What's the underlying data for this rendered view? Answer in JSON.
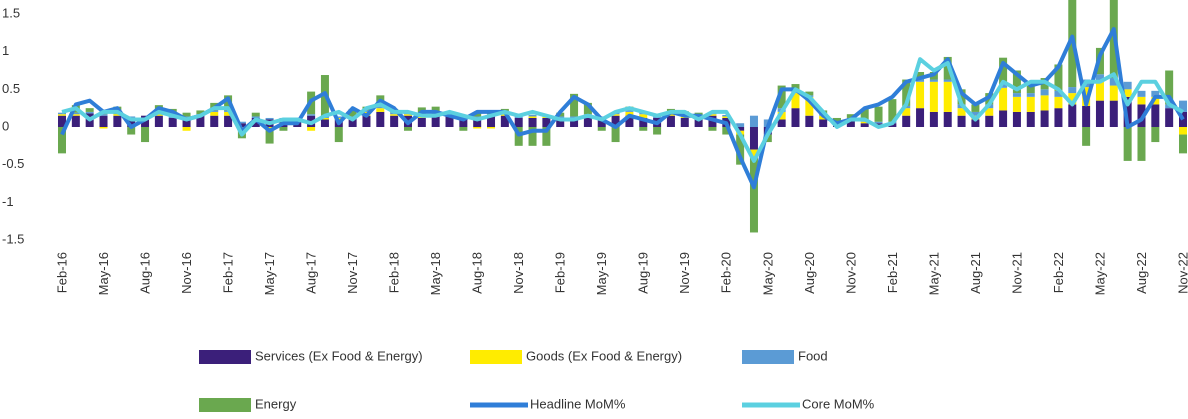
{
  "chart_data": {
    "type": "bar_line",
    "categories": [
      "Feb-16",
      null,
      null,
      "May-16",
      null,
      null,
      "Aug-16",
      null,
      null,
      "Nov-16",
      null,
      null,
      "Feb-17",
      null,
      null,
      "May-17",
      null,
      null,
      "Aug-17",
      null,
      null,
      "Nov-17",
      null,
      null,
      "Feb-18",
      null,
      null,
      "May-18",
      null,
      null,
      "Aug-18",
      null,
      null,
      "Nov-18",
      null,
      null,
      "Feb-19",
      null,
      null,
      "May-19",
      null,
      null,
      "Aug-19",
      null,
      null,
      "Nov-19",
      null,
      null,
      "Feb-20",
      null,
      null,
      "May-20",
      null,
      null,
      "Aug-20",
      null,
      null,
      "Nov-20",
      null,
      null,
      "Feb-21",
      null,
      null,
      "May-21",
      null,
      null,
      "Aug-21",
      null,
      null,
      "Nov-21",
      null,
      null,
      "Feb-22",
      null,
      null,
      "May-22",
      null,
      null,
      "Aug-22",
      null,
      null,
      "Nov-22"
    ],
    "series": [
      {
        "name": "Services (Ex Food & Energy)",
        "kind": "bar",
        "color": "#3b1f7a",
        "values": [
          0.15,
          0.15,
          0.18,
          0.15,
          0.15,
          0.12,
          0.15,
          0.15,
          0.12,
          0.12,
          0.15,
          0.15,
          0.15,
          0.05,
          0.12,
          0.1,
          0.1,
          0.1,
          0.15,
          0.1,
          0.1,
          0.12,
          0.15,
          0.2,
          0.15,
          0.15,
          0.12,
          0.15,
          0.15,
          0.12,
          0.12,
          0.15,
          0.15,
          0.12,
          0.12,
          0.12,
          0.12,
          0.12,
          0.15,
          0.12,
          0.15,
          0.15,
          0.12,
          0.12,
          0.15,
          0.12,
          0.12,
          0.15,
          0.12,
          -0.05,
          -0.3,
          -0.1,
          0.1,
          0.25,
          0.15,
          0.1,
          0.05,
          0.1,
          0.05,
          0.05,
          0.05,
          0.15,
          0.25,
          0.2,
          0.2,
          0.15,
          0.1,
          0.15,
          0.22,
          0.2,
          0.2,
          0.22,
          0.25,
          0.3,
          0.28,
          0.35,
          0.35,
          0.4,
          0.3,
          0.3,
          0.25,
          0.2
        ]
      },
      {
        "name": "Goods (Ex Food & Energy)",
        "kind": "bar",
        "color": "#ffec00",
        "values": [
          0.02,
          0.02,
          0,
          -0.02,
          0.02,
          0,
          0,
          0.02,
          0,
          -0.05,
          0,
          0.05,
          0.05,
          -0.05,
          0,
          -0.02,
          0,
          0,
          -0.05,
          0.02,
          0.02,
          0,
          0.05,
          0.05,
          0.02,
          0.02,
          0.02,
          0,
          0,
          0,
          -0.02,
          -0.02,
          0.02,
          0,
          0.02,
          0.02,
          0,
          0,
          0,
          0,
          0.02,
          0.05,
          0.05,
          0,
          0.02,
          0.02,
          0,
          0.02,
          0.02,
          -0.05,
          -0.1,
          0,
          0.1,
          0.2,
          0.25,
          0.05,
          0,
          0,
          0.02,
          0,
          0,
          0.1,
          0.35,
          0.4,
          0.4,
          0.1,
          0.05,
          0.1,
          0.3,
          0.2,
          0.2,
          0.2,
          0.15,
          0.15,
          0.25,
          0.25,
          0.2,
          0.1,
          0.1,
          0.1,
          0,
          -0.1
        ]
      },
      {
        "name": "Food",
        "kind": "bar",
        "color": "#5b9bd5",
        "values": [
          0.02,
          0.02,
          0.02,
          0.02,
          0,
          0.02,
          0,
          0.02,
          0.02,
          0.02,
          0.02,
          0.02,
          0.02,
          0.02,
          0.02,
          0.02,
          0.02,
          0.02,
          0.02,
          0.02,
          0.02,
          0.02,
          0.02,
          0.02,
          0.02,
          0.02,
          0.02,
          0.02,
          0.02,
          0.02,
          0.02,
          0.02,
          0.02,
          0.02,
          0.02,
          0.02,
          0.02,
          0.02,
          0.02,
          0.02,
          0.02,
          0.02,
          0.02,
          0.02,
          0.02,
          0.02,
          0.02,
          0.02,
          0.02,
          0.05,
          0.15,
          0.1,
          0.05,
          0.02,
          0.02,
          0.02,
          0.02,
          0.02,
          0.02,
          0.02,
          0.02,
          0.03,
          0.03,
          0.03,
          0.03,
          0.05,
          0.05,
          0.05,
          0.05,
          0.05,
          0.05,
          0.08,
          0.08,
          0.08,
          0.1,
          0.1,
          0.1,
          0.1,
          0.08,
          0.08,
          0.05,
          0.15
        ]
      },
      {
        "name": "Energy",
        "kind": "bar",
        "color": "#6aa84f",
        "values": [
          -0.35,
          0.1,
          0.05,
          0.05,
          0.1,
          -0.1,
          -0.2,
          0.1,
          0.1,
          0.05,
          0.05,
          0.1,
          0.2,
          -0.1,
          0.05,
          -0.2,
          -0.05,
          0,
          0.3,
          0.55,
          -0.2,
          0.1,
          0.05,
          0.15,
          0.05,
          -0.05,
          0.1,
          0.1,
          0,
          -0.05,
          0.05,
          0.05,
          0.05,
          -0.25,
          -0.25,
          -0.25,
          0.05,
          0.3,
          0.15,
          -0.05,
          -0.2,
          0.05,
          -0.05,
          -0.1,
          0.05,
          0.05,
          0.05,
          -0.05,
          -0.1,
          -0.4,
          -1.0,
          -0.1,
          0.3,
          0.1,
          0.05,
          0.05,
          0.05,
          0.05,
          0.15,
          0.2,
          0.3,
          0.35,
          0.1,
          0.1,
          0.3,
          0.2,
          0.1,
          0.15,
          0.35,
          0.3,
          0.1,
          0.15,
          0.35,
          1.25,
          -0.25,
          0.35,
          1.25,
          -0.45,
          -0.45,
          -0.2,
          0.45,
          -0.25
        ]
      },
      {
        "name": "Headline MoM%",
        "kind": "line",
        "color": "#2f7ed8",
        "values": [
          -0.1,
          0.3,
          0.35,
          0.2,
          0.25,
          0.0,
          0.1,
          0.25,
          0.2,
          0.1,
          0.15,
          0.25,
          0.38,
          -0.05,
          0.1,
          -0.05,
          0.05,
          0.05,
          0.35,
          0.45,
          0.05,
          0.25,
          0.15,
          0.35,
          0.25,
          0.05,
          0.2,
          0.2,
          0.15,
          0.1,
          0.2,
          0.2,
          0.2,
          -0.1,
          -0.05,
          -0.05,
          0.2,
          0.4,
          0.3,
          0.1,
          0.0,
          0.15,
          0.1,
          0.05,
          0.2,
          0.15,
          0.15,
          0.1,
          0.05,
          -0.4,
          -0.8,
          0.0,
          0.5,
          0.5,
          0.35,
          0.15,
          0.05,
          0.1,
          0.25,
          0.3,
          0.4,
          0.6,
          0.65,
          0.7,
          0.9,
          0.45,
          0.3,
          0.4,
          0.85,
          0.7,
          0.55,
          0.6,
          0.8,
          1.2,
          0.3,
          0.95,
          1.3,
          0.0,
          0.1,
          0.4,
          0.4,
          0.1
        ]
      },
      {
        "name": "Core MoM%",
        "kind": "line",
        "color": "#5bd0e0",
        "values": [
          0.2,
          0.25,
          0.1,
          0.2,
          0.2,
          0.1,
          0.1,
          0.2,
          0.15,
          0.1,
          0.15,
          0.25,
          0.25,
          -0.1,
          0.1,
          0.05,
          0.1,
          0.1,
          0.05,
          0.15,
          0.2,
          0.1,
          0.25,
          0.3,
          0.2,
          0.2,
          0.15,
          0.15,
          0.2,
          0.15,
          0.1,
          0.15,
          0.2,
          0.15,
          0.2,
          0.15,
          0.1,
          0.1,
          0.15,
          0.1,
          0.2,
          0.25,
          0.2,
          0.15,
          0.2,
          0.2,
          0.1,
          0.2,
          0.2,
          -0.1,
          -0.45,
          -0.1,
          0.2,
          0.5,
          0.4,
          0.2,
          0.0,
          0.1,
          0.1,
          0.0,
          0.05,
          0.3,
          0.9,
          0.75,
          0.85,
          0.3,
          0.1,
          0.3,
          0.6,
          0.5,
          0.6,
          0.6,
          0.5,
          0.3,
          0.6,
          0.6,
          0.7,
          0.3,
          0.6,
          0.6,
          0.3,
          0.2
        ]
      }
    ],
    "ylim": [
      -1.5,
      1.5
    ],
    "yticks": [
      -1.5,
      -1,
      -0.5,
      0,
      0.5,
      1,
      1.5
    ]
  }
}
